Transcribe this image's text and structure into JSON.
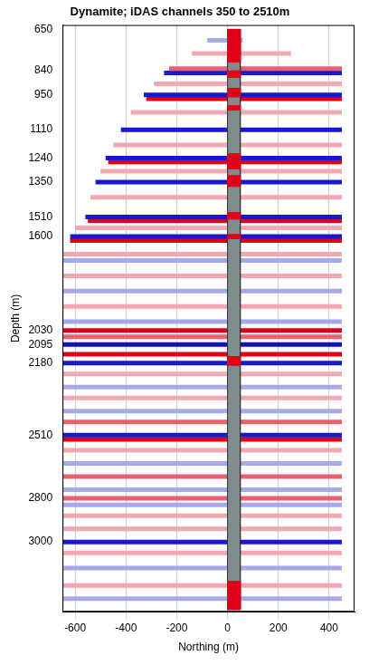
{
  "chart_data": {
    "type": "seismic_section",
    "title": "Dynamite; iDAS channels 350 to 2510m",
    "x_label": "Northing (m)",
    "y_label": "Depth (m)",
    "xlim": [
      -650,
      500
    ],
    "xticks": [
      -600,
      -400,
      -200,
      0,
      200,
      400
    ],
    "ylim": [
      3320,
      630
    ],
    "yticks": [
      650,
      840,
      950,
      1110,
      1240,
      1350,
      1510,
      1600,
      2030,
      2095,
      2180,
      2510,
      2800,
      3000
    ],
    "grid": "x",
    "reflectors": [
      {
        "depth": 700,
        "color": "#a8a8ec",
        "x": [
          -80,
          60
        ]
      },
      {
        "depth": 760,
        "color": "#f2a8b0",
        "x": [
          -140,
          250
        ]
      },
      {
        "depth": 830,
        "color": "#ea6070",
        "x": [
          -230,
          450
        ]
      },
      {
        "depth": 850,
        "color": "#1818d0",
        "x": [
          -250,
          450
        ]
      },
      {
        "depth": 900,
        "color": "#f2a8b0",
        "x": [
          -290,
          450
        ]
      },
      {
        "depth": 950,
        "color": "#1818d0",
        "x": [
          -330,
          450
        ]
      },
      {
        "depth": 968,
        "color": "#e0001a",
        "x": [
          -320,
          450
        ]
      },
      {
        "depth": 1030,
        "color": "#f2a8b0",
        "x": [
          -380,
          450
        ]
      },
      {
        "depth": 1110,
        "color": "#1818d0",
        "x": [
          -420,
          450
        ]
      },
      {
        "depth": 1180,
        "color": "#f2a8b0",
        "x": [
          -450,
          450
        ]
      },
      {
        "depth": 1240,
        "color": "#1818d0",
        "x": [
          -480,
          450
        ]
      },
      {
        "depth": 1258,
        "color": "#e0001a",
        "x": [
          -470,
          450
        ]
      },
      {
        "depth": 1300,
        "color": "#f2a8b0",
        "x": [
          -500,
          450
        ]
      },
      {
        "depth": 1350,
        "color": "#1818d0",
        "x": [
          -520,
          450
        ]
      },
      {
        "depth": 1420,
        "color": "#f2a8b0",
        "x": [
          -540,
          450
        ]
      },
      {
        "depth": 1510,
        "color": "#1818d0",
        "x": [
          -560,
          450
        ]
      },
      {
        "depth": 1528,
        "color": "#e0001a",
        "x": [
          -550,
          450
        ]
      },
      {
        "depth": 1560,
        "color": "#f2a8b0",
        "x": [
          -600,
          450
        ]
      },
      {
        "depth": 1600,
        "color": "#1818d0",
        "x": [
          -620,
          450
        ]
      },
      {
        "depth": 1618,
        "color": "#e0001a",
        "x": [
          -620,
          450
        ]
      },
      {
        "depth": 1680,
        "color": "#f2a8b0",
        "x": [
          -650,
          450
        ]
      },
      {
        "depth": 1710,
        "color": "#a8a8ec",
        "x": [
          -650,
          450
        ]
      },
      {
        "depth": 1780,
        "color": "#f2a8b0",
        "x": [
          -650,
          450
        ]
      },
      {
        "depth": 1850,
        "color": "#a8a8ec",
        "x": [
          -650,
          450
        ]
      },
      {
        "depth": 1920,
        "color": "#f2a8b0",
        "x": [
          -650,
          450
        ]
      },
      {
        "depth": 1990,
        "color": "#a8a8ec",
        "x": [
          -650,
          450
        ]
      },
      {
        "depth": 2030,
        "color": "#e0001a",
        "x": [
          -650,
          450
        ]
      },
      {
        "depth": 2060,
        "color": "#ea6070",
        "x": [
          -650,
          450
        ]
      },
      {
        "depth": 2095,
        "color": "#1010c0",
        "x": [
          -650,
          450
        ]
      },
      {
        "depth": 2140,
        "color": "#e0001a",
        "x": [
          -650,
          450
        ]
      },
      {
        "depth": 2180,
        "color": "#1818d0",
        "x": [
          -650,
          450
        ]
      },
      {
        "depth": 2230,
        "color": "#f2a8b0",
        "x": [
          -650,
          450
        ]
      },
      {
        "depth": 2290,
        "color": "#a8a8ec",
        "x": [
          -650,
          450
        ]
      },
      {
        "depth": 2340,
        "color": "#f2a8b0",
        "x": [
          -650,
          450
        ]
      },
      {
        "depth": 2400,
        "color": "#a8a8ec",
        "x": [
          -650,
          450
        ]
      },
      {
        "depth": 2450,
        "color": "#ea6070",
        "x": [
          -650,
          450
        ]
      },
      {
        "depth": 2510,
        "color": "#1818d0",
        "x": [
          -650,
          450
        ]
      },
      {
        "depth": 2530,
        "color": "#e0001a",
        "x": [
          -650,
          450
        ]
      },
      {
        "depth": 2580,
        "color": "#f2a8b0",
        "x": [
          -650,
          450
        ]
      },
      {
        "depth": 2640,
        "color": "#a8a8ec",
        "x": [
          -650,
          450
        ]
      },
      {
        "depth": 2700,
        "color": "#ea6070",
        "x": [
          -650,
          450
        ]
      },
      {
        "depth": 2760,
        "color": "#a8a8ec",
        "x": [
          -650,
          450
        ]
      },
      {
        "depth": 2800,
        "color": "#ea6070",
        "x": [
          -650,
          450
        ]
      },
      {
        "depth": 2830,
        "color": "#a8a8ec",
        "x": [
          -650,
          450
        ]
      },
      {
        "depth": 2880,
        "color": "#f2a8b0",
        "x": [
          -650,
          450
        ]
      },
      {
        "depth": 2940,
        "color": "#f2a8b0",
        "x": [
          -650,
          450
        ]
      },
      {
        "depth": 3000,
        "color": "#1818d0",
        "x": [
          -650,
          450
        ]
      },
      {
        "depth": 3050,
        "color": "#f2a8b0",
        "x": [
          -650,
          450
        ]
      },
      {
        "depth": 3120,
        "color": "#a8a8ec",
        "x": [
          -650,
          450
        ]
      },
      {
        "depth": 3200,
        "color": "#f2a8b0",
        "x": [
          -650,
          450
        ]
      },
      {
        "depth": 3260,
        "color": "#a8a8ec",
        "x": [
          -650,
          450
        ]
      }
    ],
    "well_track": {
      "x": [
        0,
        50
      ],
      "depth": [
        650,
        3310
      ],
      "color": "#7f8c8d"
    },
    "well_intervals": {
      "color": "#e0001a",
      "x": [
        0,
        50
      ],
      "depth": [
        [
          650,
          800
        ],
        [
          840,
          870
        ],
        [
          920,
          960
        ],
        [
          1000,
          1020
        ],
        [
          1220,
          1290
        ],
        [
          1320,
          1370
        ],
        [
          1490,
          1520
        ],
        [
          1590,
          1610
        ],
        [
          2150,
          2190
        ],
        [
          3180,
          3310
        ]
      ]
    }
  }
}
